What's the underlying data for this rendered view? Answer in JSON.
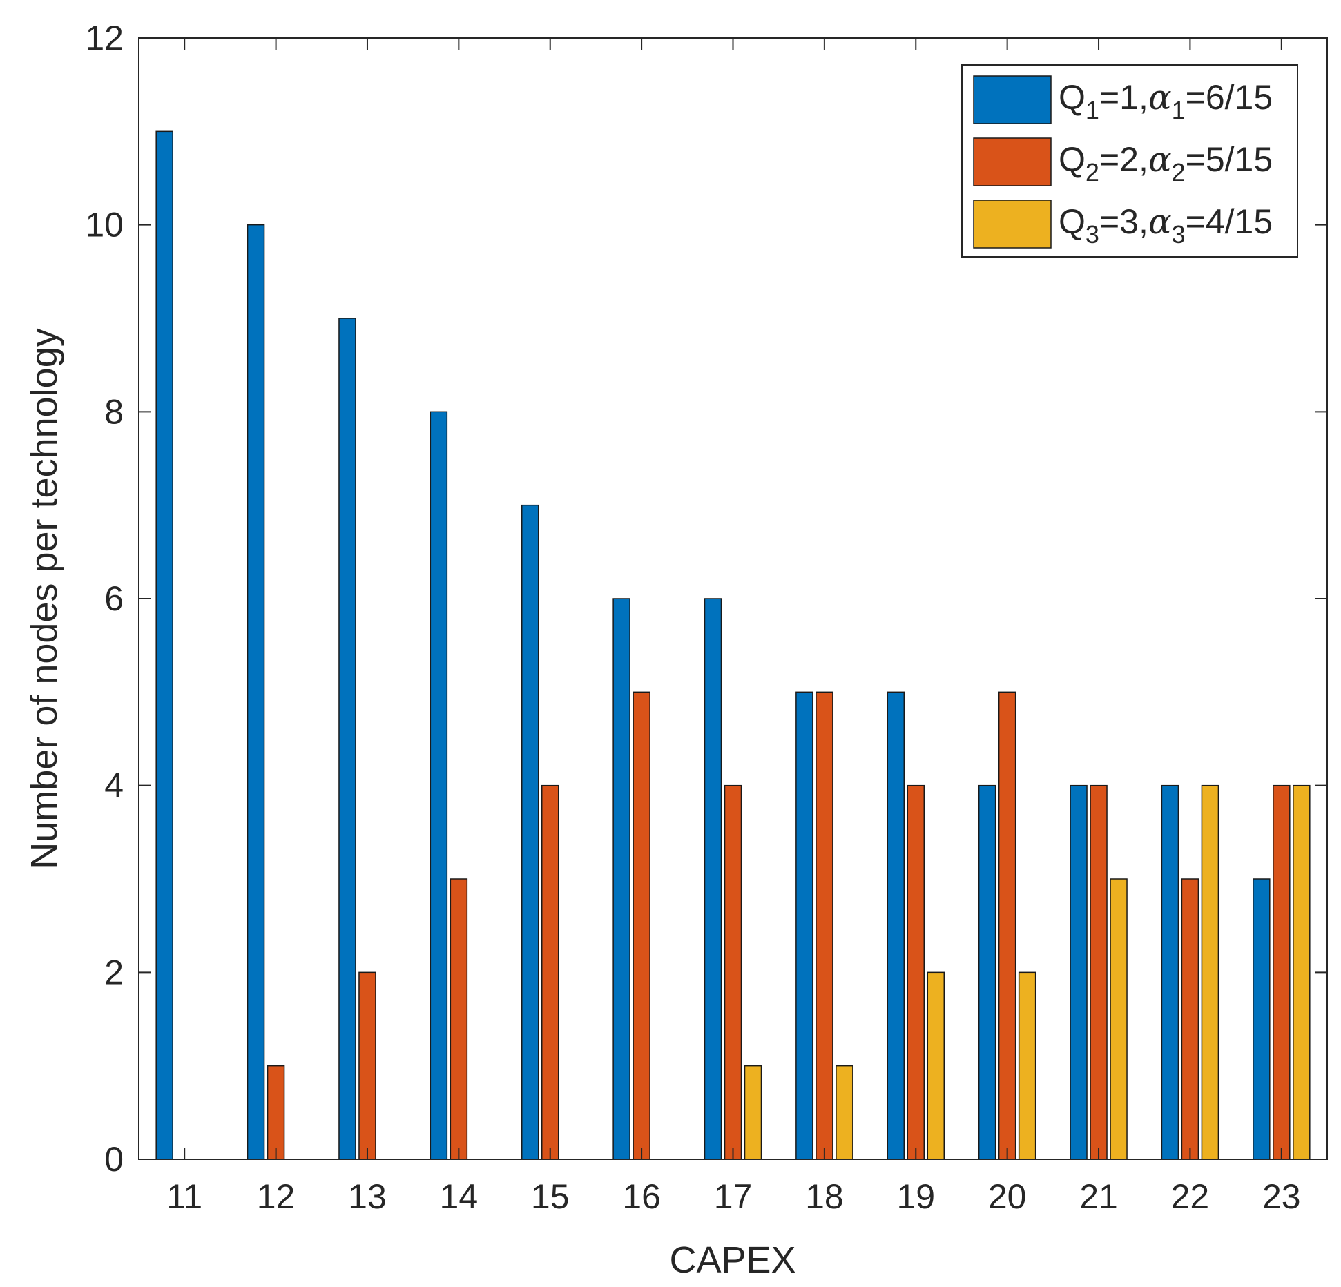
{
  "chart_data": {
    "type": "bar",
    "xlabel": "CAPEX",
    "ylabel": "Number of nodes per technology",
    "ylim": [
      0,
      12
    ],
    "yticks": [
      0,
      2,
      4,
      6,
      8,
      10,
      12
    ],
    "categories": [
      "11",
      "12",
      "13",
      "14",
      "15",
      "16",
      "17",
      "18",
      "19",
      "20",
      "21",
      "22",
      "23"
    ],
    "grid": false,
    "legend_position": "top-right",
    "series": [
      {
        "legend": {
          "q": "Q",
          "q_sub": "1",
          "q_val": "=1,",
          "alpha": "α",
          "alpha_sub": "1",
          "alpha_val": "=6/15"
        },
        "color": "#0072BD",
        "values": [
          11,
          10,
          9,
          8,
          7,
          6,
          6,
          5,
          5,
          4,
          4,
          4,
          3
        ]
      },
      {
        "legend": {
          "q": "Q",
          "q_sub": "2",
          "q_val": "=2,",
          "alpha": "α",
          "alpha_sub": "2",
          "alpha_val": "=5/15"
        },
        "color": "#D95319",
        "values": [
          0,
          1,
          2,
          3,
          4,
          5,
          4,
          5,
          4,
          5,
          4,
          3,
          4
        ]
      },
      {
        "legend": {
          "q": "Q",
          "q_sub": "3",
          "q_val": "=3,",
          "alpha": "α",
          "alpha_sub": "3",
          "alpha_val": "=4/15"
        },
        "color": "#EDB120",
        "values": [
          0,
          0,
          0,
          0,
          0,
          0,
          1,
          1,
          2,
          2,
          3,
          4,
          4
        ]
      }
    ]
  }
}
